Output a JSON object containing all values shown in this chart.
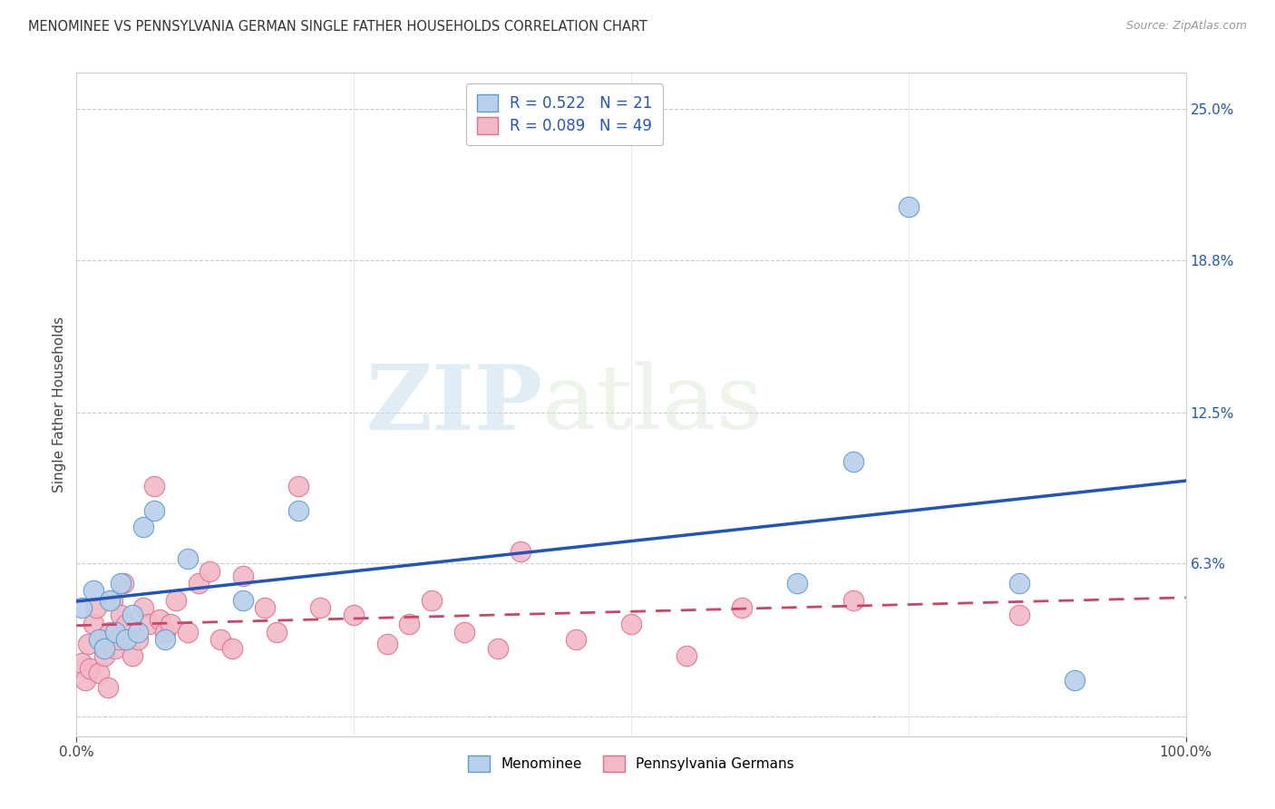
{
  "title": "MENOMINEE VS PENNSYLVANIA GERMAN SINGLE FATHER HOUSEHOLDS CORRELATION CHART",
  "source": "Source: ZipAtlas.com",
  "ylabel": "Single Father Households",
  "xlim": [
    0,
    100
  ],
  "ylim": [
    -0.8,
    26.5
  ],
  "xtick_labels": [
    "0.0%",
    "100.0%"
  ],
  "xtick_positions": [
    0,
    100
  ],
  "ytick_labels": [
    "",
    "6.3%",
    "12.5%",
    "18.8%",
    "25.0%"
  ],
  "ytick_positions": [
    0,
    6.3,
    12.5,
    18.8,
    25.0
  ],
  "menominee_color": "#b8d0ea",
  "menominee_edge_color": "#5b9bd5",
  "menominee_line_color": "#2255bb",
  "penn_german_color": "#f2b8c6",
  "penn_german_edge_color": "#e07090",
  "penn_german_line_color": "#cc4466",
  "legend_R1": "R = 0.522",
  "legend_N1": "N = 21",
  "legend_R2": "R = 0.089",
  "legend_N2": "N = 49",
  "watermark_zip": "ZIP",
  "watermark_atlas": "atlas",
  "background_color": "#ffffff",
  "grid_color": "#cccccc",
  "menominee_x": [
    0.5,
    1.5,
    2.0,
    2.5,
    3.0,
    3.5,
    4.0,
    4.5,
    5.0,
    5.5,
    6.0,
    7.0,
    8.0,
    10.0,
    15.0,
    20.0,
    65.0,
    70.0,
    75.0,
    85.0,
    90.0
  ],
  "menominee_y": [
    4.5,
    5.2,
    3.2,
    2.8,
    4.8,
    3.5,
    5.5,
    3.2,
    4.2,
    3.5,
    7.8,
    8.5,
    3.2,
    6.5,
    4.8,
    8.5,
    5.5,
    10.5,
    21.0,
    5.5,
    1.5
  ],
  "penn_german_x": [
    0.5,
    0.8,
    1.0,
    1.2,
    1.5,
    1.8,
    2.0,
    2.2,
    2.5,
    2.8,
    3.0,
    3.2,
    3.5,
    3.8,
    4.0,
    4.2,
    4.5,
    5.0,
    5.5,
    6.0,
    6.5,
    7.0,
    7.5,
    8.0,
    8.5,
    9.0,
    10.0,
    11.0,
    12.0,
    13.0,
    14.0,
    15.0,
    17.0,
    18.0,
    20.0,
    22.0,
    25.0,
    28.0,
    30.0,
    32.0,
    35.0,
    38.0,
    40.0,
    45.0,
    50.0,
    55.0,
    60.0,
    70.0,
    85.0
  ],
  "penn_german_y": [
    2.2,
    1.5,
    3.0,
    2.0,
    3.8,
    4.5,
    1.8,
    3.2,
    2.5,
    1.2,
    3.5,
    4.8,
    2.8,
    3.2,
    4.2,
    5.5,
    3.8,
    2.5,
    3.2,
    4.5,
    3.8,
    9.5,
    4.0,
    3.5,
    3.8,
    4.8,
    3.5,
    5.5,
    6.0,
    3.2,
    2.8,
    5.8,
    4.5,
    3.5,
    9.5,
    4.5,
    4.2,
    3.0,
    3.8,
    4.8,
    3.5,
    2.8,
    6.8,
    3.2,
    3.8,
    2.5,
    4.5,
    4.8,
    4.2
  ]
}
